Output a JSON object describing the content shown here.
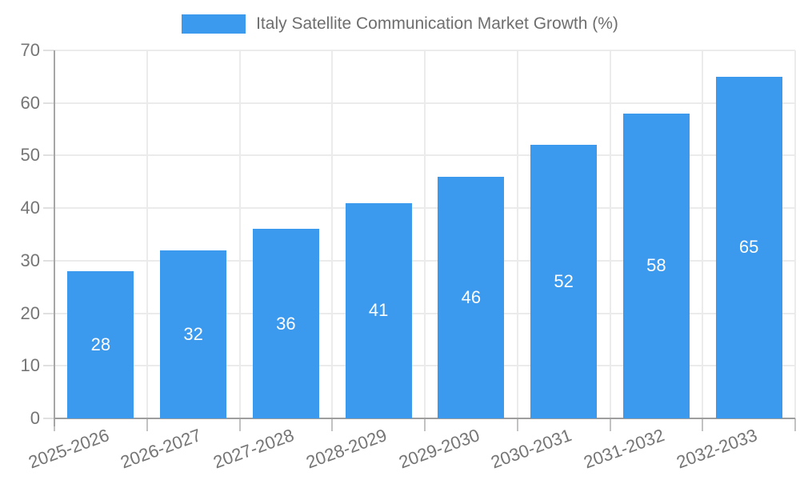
{
  "legend": {
    "label": "Italy Satellite Communication Market Growth (%)",
    "swatch_color": "#3b99ee"
  },
  "chart_data": {
    "type": "bar",
    "title": "Italy Satellite Communication Market Growth (%)",
    "categories": [
      "2025-2026",
      "2026-2027",
      "2027-2028",
      "2028-2029",
      "2029-2030",
      "2030-2031",
      "2031-2032",
      "2032-2033"
    ],
    "values": [
      28,
      32,
      36,
      41,
      46,
      52,
      58,
      65
    ],
    "series": [
      {
        "name": "Italy Satellite Communication Market Growth (%)",
        "values": [
          28,
          32,
          36,
          41,
          46,
          52,
          58,
          65
        ]
      }
    ],
    "xlabel": "",
    "ylabel": "",
    "ylim": [
      0,
      70
    ],
    "yticks": [
      0,
      10,
      20,
      30,
      40,
      50,
      60,
      70
    ],
    "grid": true,
    "legend_position": "top",
    "bar_color": "#3b99ee",
    "value_label_color": "#ffffff"
  }
}
